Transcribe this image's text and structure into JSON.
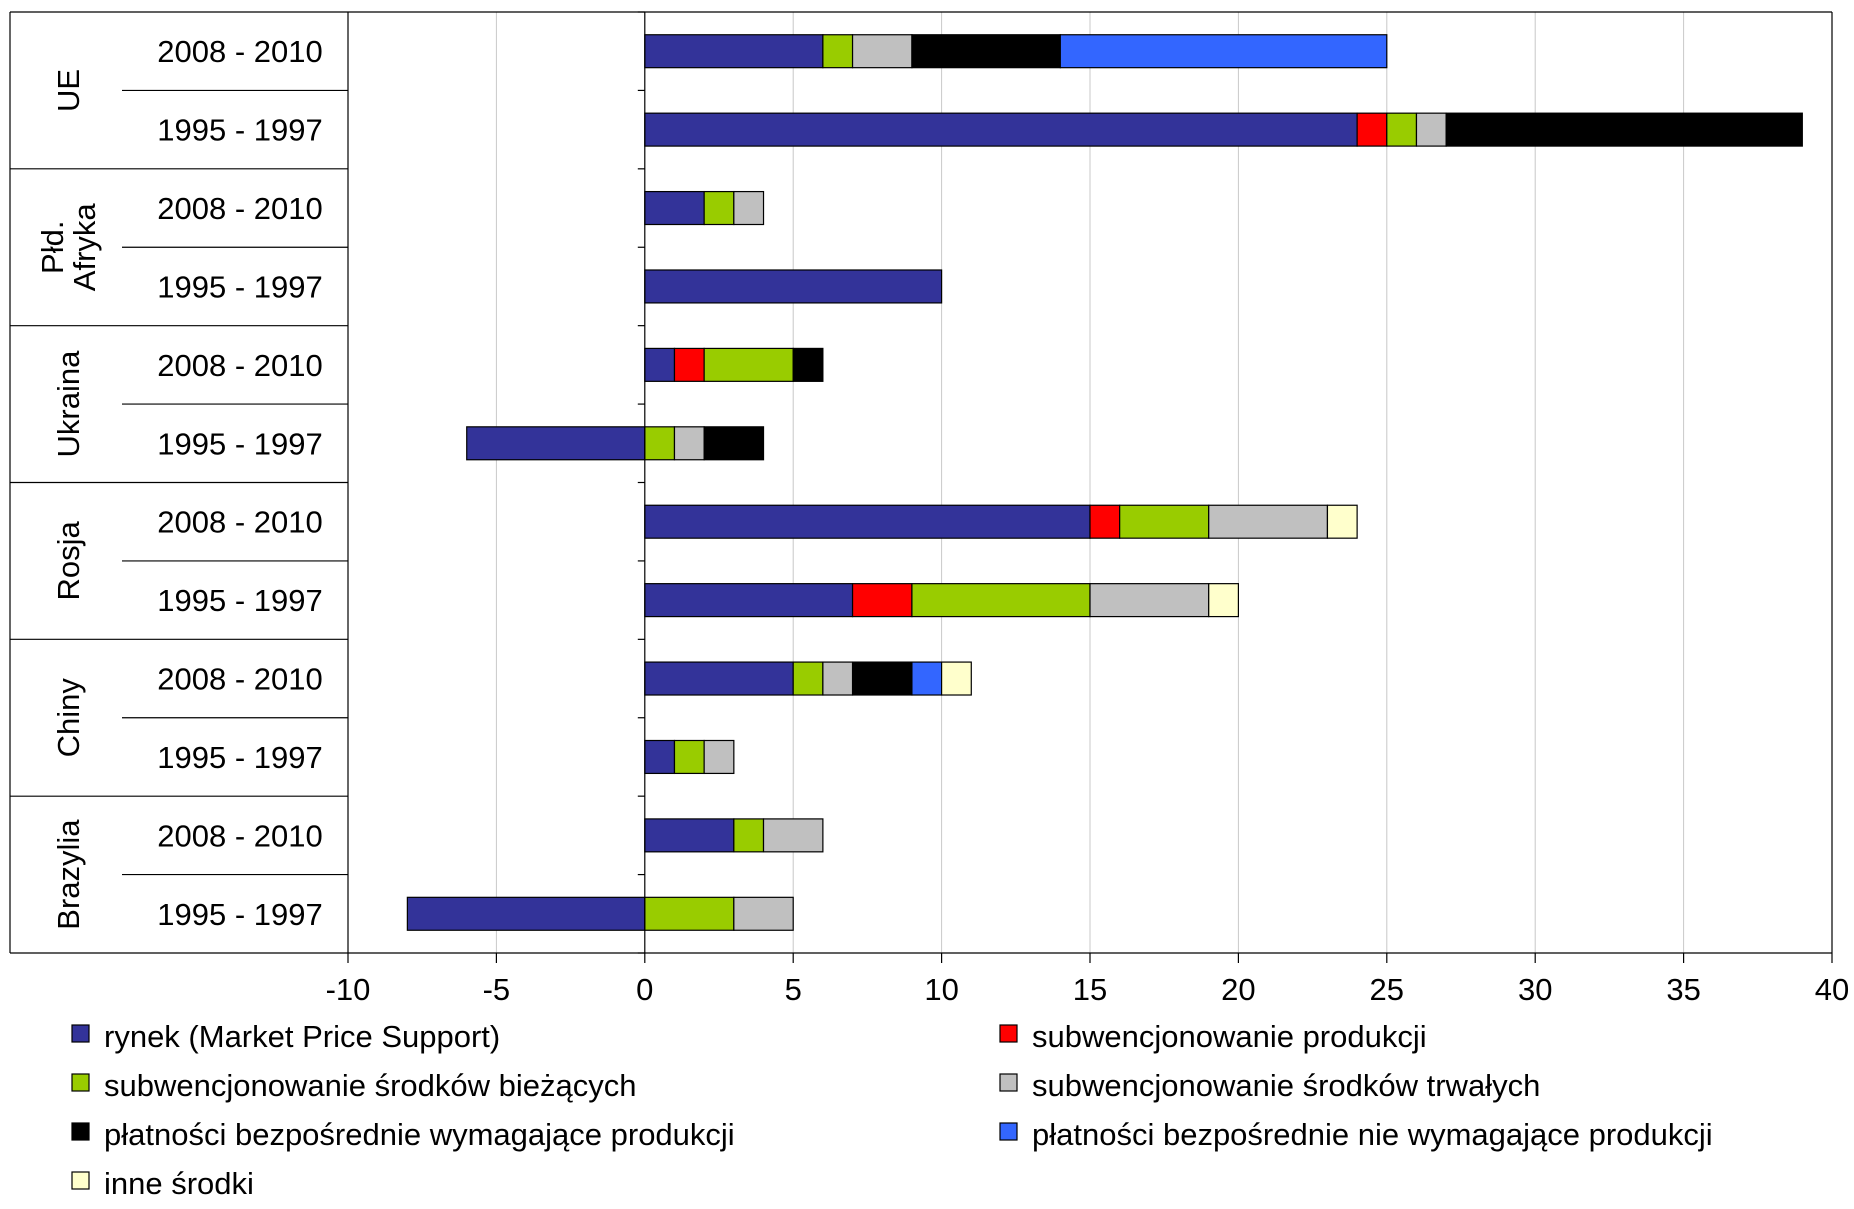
{
  "chart_data": {
    "type": "bar",
    "orientation": "horizontal",
    "stacked": true,
    "xlim": [
      -10,
      40
    ],
    "xticks": [
      -10,
      -5,
      0,
      5,
      10,
      15,
      20,
      25,
      30,
      35,
      40
    ],
    "grid": true,
    "legend_position": "bottom",
    "series": [
      {
        "name": "rynek (Market Price Support)",
        "color": "#333399"
      },
      {
        "name": "subwencjonowanie produkcji",
        "color": "#ff0000"
      },
      {
        "name": "subwencjonowanie środków bieżących",
        "color": "#99cc00"
      },
      {
        "name": "subwencjonowanie środków trwałych",
        "color": "#c0c0c0"
      },
      {
        "name": "płatności bezpośrednie wymagające produkcji",
        "color": "#000000"
      },
      {
        "name": "płatności bezpośrednie nie wymagające produkcji",
        "color": "#3366ff"
      },
      {
        "name": "inne środki",
        "color": "#ffffcc"
      }
    ],
    "groups": [
      {
        "name": "UE",
        "rows": [
          {
            "label": "2008 - 2010",
            "values": [
              6,
              0,
              1,
              2,
              5,
              11,
              0
            ]
          },
          {
            "label": "1995 - 1997",
            "values": [
              24,
              1,
              1,
              1,
              12,
              0,
              0
            ]
          }
        ]
      },
      {
        "name": [
          "Płd.",
          "Afryka"
        ],
        "rows": [
          {
            "label": "2008 - 2010",
            "values": [
              2,
              0,
              1,
              1,
              0,
              0,
              0
            ]
          },
          {
            "label": "1995 - 1997",
            "values": [
              10,
              0,
              0,
              0,
              0,
              0,
              0
            ]
          }
        ]
      },
      {
        "name": "Ukraina",
        "rows": [
          {
            "label": "2008 - 2010",
            "values": [
              1,
              1,
              3,
              0,
              1,
              0,
              0
            ]
          },
          {
            "label": "1995 - 1997",
            "values": [
              -6,
              0,
              1,
              1,
              2,
              0,
              0
            ]
          }
        ]
      },
      {
        "name": "Rosja",
        "rows": [
          {
            "label": "2008 - 2010",
            "values": [
              15,
              1,
              3,
              4,
              0,
              0,
              1
            ]
          },
          {
            "label": "1995 - 1997",
            "values": [
              7,
              2,
              6,
              4,
              0,
              0,
              1
            ]
          }
        ]
      },
      {
        "name": "Chiny",
        "rows": [
          {
            "label": "2008 - 2010",
            "values": [
              5,
              0,
              1,
              1,
              2,
              1,
              1
            ]
          },
          {
            "label": "1995 - 1997",
            "values": [
              1,
              0,
              1,
              1,
              0,
              0,
              0
            ]
          }
        ]
      },
      {
        "name": "Brazylia",
        "rows": [
          {
            "label": "2008 - 2010",
            "values": [
              3,
              0,
              1,
              2,
              0,
              0,
              0
            ]
          },
          {
            "label": "1995 - 1997",
            "values": [
              -8,
              0,
              3,
              2,
              0,
              0,
              0
            ]
          }
        ]
      }
    ]
  }
}
